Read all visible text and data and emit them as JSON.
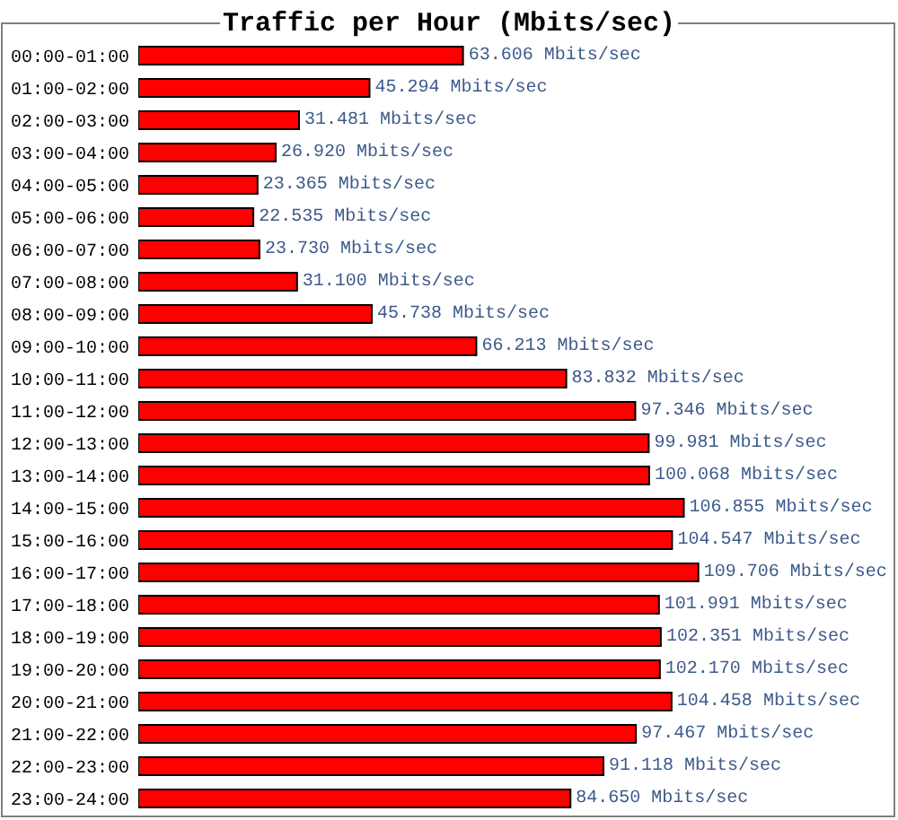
{
  "chart_data": {
    "type": "bar",
    "title": "Traffic per Hour (Mbits/sec)",
    "orientation": "horizontal",
    "color": "#ff0000",
    "categories": [
      "00:00-01:00",
      "01:00-02:00",
      "02:00-03:00",
      "03:00-04:00",
      "04:00-05:00",
      "05:00-06:00",
      "06:00-07:00",
      "07:00-08:00",
      "08:00-09:00",
      "09:00-10:00",
      "10:00-11:00",
      "11:00-12:00",
      "12:00-13:00",
      "13:00-14:00",
      "14:00-15:00",
      "15:00-16:00",
      "16:00-17:00",
      "17:00-18:00",
      "18:00-19:00",
      "19:00-20:00",
      "20:00-21:00",
      "21:00-22:00",
      "22:00-23:00",
      "23:00-24:00"
    ],
    "values": [
      63.606,
      45.294,
      31.481,
      26.92,
      23.365,
      22.535,
      23.73,
      31.1,
      45.738,
      66.213,
      83.832,
      97.346,
      99.981,
      100.068,
      106.855,
      104.547,
      109.706,
      101.991,
      102.351,
      102.17,
      104.458,
      97.467,
      91.118,
      84.65
    ],
    "value_labels": [
      "63.606 Mbits/sec",
      "45.294 Mbits/sec",
      "31.481 Mbits/sec",
      "26.920 Mbits/sec",
      "23.365 Mbits/sec",
      "22.535 Mbits/sec",
      "23.730 Mbits/sec",
      "31.100 Mbits/sec",
      "45.738 Mbits/sec",
      "66.213 Mbits/sec",
      "83.832 Mbits/sec",
      "97.346 Mbits/sec",
      "99.981 Mbits/sec",
      "100.068 Mbits/sec",
      "106.855 Mbits/sec",
      "104.547 Mbits/sec",
      "109.706 Mbits/sec",
      "101.991 Mbits/sec",
      "102.351 Mbits/sec",
      "102.170 Mbits/sec",
      "104.458 Mbits/sec",
      "97.467 Mbits/sec",
      "91.118 Mbits/sec",
      "84.650 Mbits/sec"
    ]
  }
}
